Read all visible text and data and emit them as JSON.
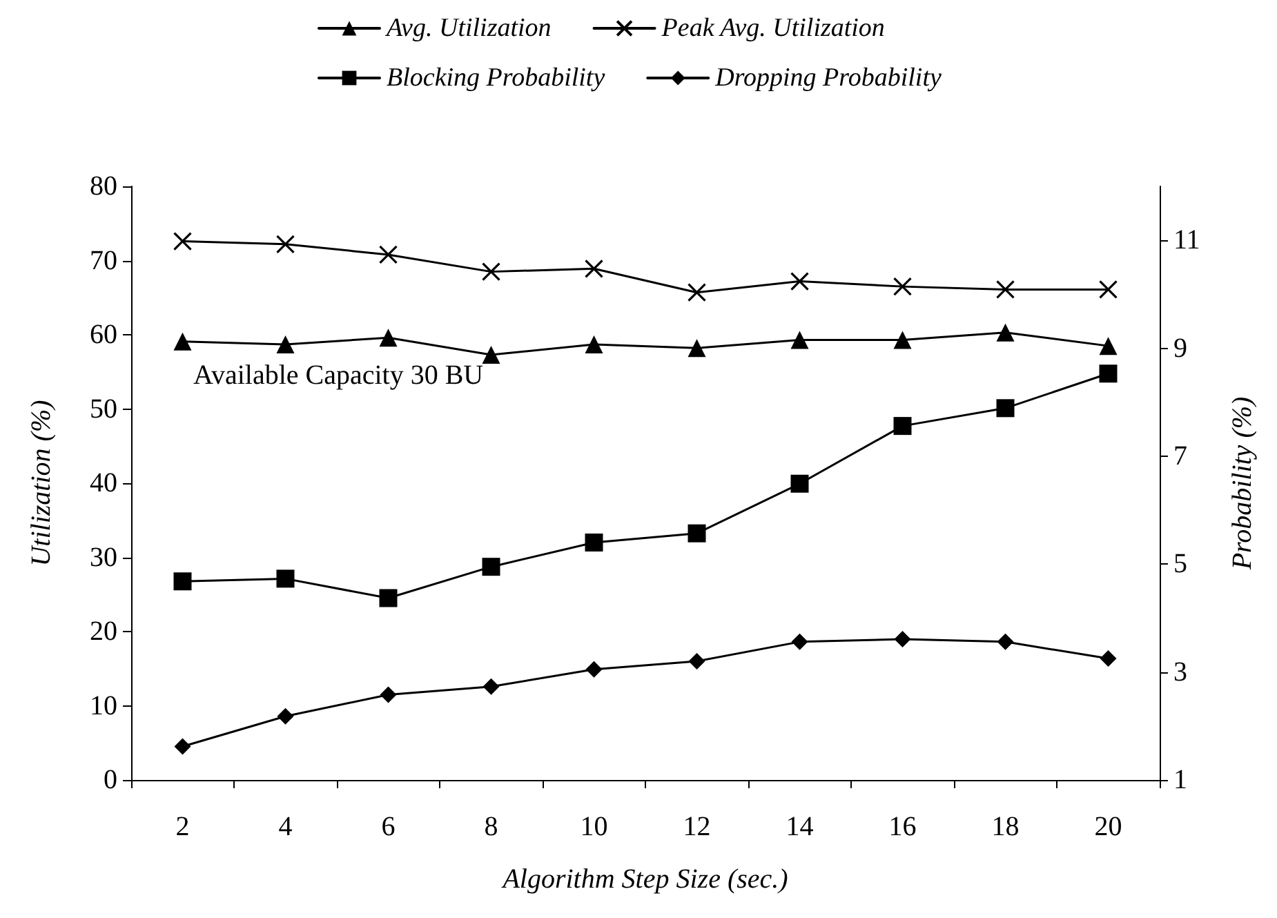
{
  "chart_data": {
    "type": "line",
    "categories": [
      "2",
      "4",
      "6",
      "8",
      "10",
      "12",
      "14",
      "16",
      "18",
      "20"
    ],
    "xlabel": "Algorithm Step Size (sec.)",
    "ylabel": "Utilization (%)",
    "y2label": "Probability (%)",
    "ylim": [
      0,
      80
    ],
    "yticks": [
      0,
      10,
      20,
      30,
      40,
      50,
      60,
      70,
      80
    ],
    "y2lim": [
      1,
      12
    ],
    "y2ticks": [
      1,
      3,
      5,
      7,
      9,
      11
    ],
    "legend": "top",
    "annotations": [
      "Available Capacity 30 BU"
    ],
    "series": [
      {
        "name": "Avg. Utilization",
        "color": "#000000",
        "marker": "triangle",
        "values": [
          59.1,
          58.7,
          59.6,
          57.3,
          58.7,
          58.2,
          59.3,
          59.3,
          60.3,
          58.5
        ]
      },
      {
        "name": "Peak Avg. Utilization",
        "color": "#000000",
        "marker": "cross",
        "values": [
          72.6,
          72.2,
          70.8,
          68.5,
          68.9,
          65.7,
          67.2,
          66.5,
          66.1,
          66.1
        ]
      },
      {
        "name": "Blocking Probability",
        "color": "#000000",
        "marker": "square",
        "axis": "y2",
        "values": [
          4.68,
          4.73,
          4.37,
          4.95,
          5.4,
          5.57,
          6.49,
          7.56,
          7.89,
          8.53
        ]
      },
      {
        "name": "Dropping Probability",
        "color": "#000000",
        "marker": "diamond",
        "axis": "y2",
        "values": [
          1.62,
          2.18,
          2.58,
          2.73,
          3.05,
          3.2,
          3.56,
          3.61,
          3.56,
          3.25
        ]
      }
    ]
  }
}
